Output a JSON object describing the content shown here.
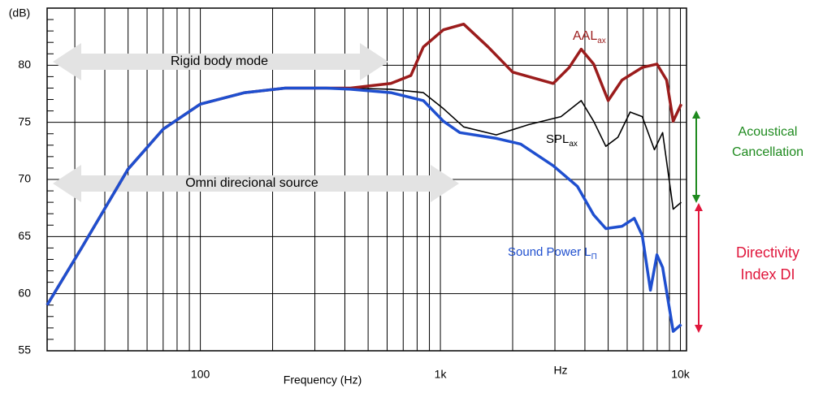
{
  "chart_data": {
    "type": "line",
    "y_label": "(dB)",
    "x_label": "Frequency (Hz)",
    "x_unit": "Hz",
    "log_x": true,
    "grid": true,
    "xlim": [
      23,
      10600
    ],
    "ylim": [
      55,
      85
    ],
    "xticks": [
      {
        "value": 100,
        "label": "100"
      },
      {
        "value": 1000,
        "label": "1k"
      },
      {
        "value": 10000,
        "label": "10k"
      }
    ],
    "xgrid": [
      30,
      40,
      50,
      60,
      70,
      80,
      90,
      200,
      300,
      400,
      500,
      600,
      700,
      800,
      900,
      2000,
      3000,
      4000,
      5000,
      6000,
      7000,
      8000,
      9000
    ],
    "yticks": [
      55,
      60,
      65,
      70,
      75,
      80
    ],
    "yminor": [
      56,
      57,
      58,
      59,
      61,
      62,
      63,
      64,
      66,
      67,
      68,
      69,
      71,
      72,
      73,
      74,
      76,
      77,
      78,
      79,
      81,
      82,
      83,
      84
    ],
    "series": [
      {
        "name": "AAL",
        "name_sub": "ax",
        "color": "#9b1c1c",
        "width": 3.5,
        "x": [
          23,
          32,
          50,
          70,
          100,
          153,
          226,
          334,
          422,
          622,
          753,
          849,
          1030,
          1250,
          1580,
          2000,
          2950,
          3440,
          3860,
          4350,
          5000,
          5710,
          6930,
          7980,
          8760,
          9330,
          10080
        ],
        "values": [
          59,
          64,
          70.9,
          74.4,
          76.6,
          77.6,
          78,
          78,
          78,
          78.4,
          79.1,
          81.6,
          83.1,
          83.6,
          81.6,
          79.4,
          78.4,
          79.8,
          81.4,
          80.1,
          76.9,
          78.7,
          79.8,
          80.1,
          78.7,
          75.1,
          76.6
        ]
      },
      {
        "name": "SPL",
        "name_sub": "ax",
        "color": "#000000",
        "width": 1.6,
        "x": [
          23,
          32,
          50,
          70,
          100,
          153,
          226,
          334,
          422,
          622,
          849,
          1030,
          1250,
          1710,
          2330,
          3180,
          3860,
          4350,
          4890,
          5490,
          6170,
          6930,
          7790,
          8430,
          9330,
          10080
        ],
        "values": [
          59,
          64,
          70.9,
          74.4,
          76.6,
          77.6,
          78,
          78,
          78,
          77.9,
          77.6,
          76.2,
          74.6,
          73.9,
          74.8,
          75.5,
          76.9,
          75.1,
          72.9,
          73.7,
          75.9,
          75.5,
          72.6,
          74.1,
          67.4,
          68
        ]
      },
      {
        "name": "Sound Power  L",
        "name_sub": "Π",
        "color": "#1f4fcf",
        "width": 3.5,
        "x": [
          23,
          32,
          50,
          70,
          100,
          153,
          226,
          334,
          422,
          622,
          849,
          1030,
          1205,
          1710,
          2160,
          2950,
          3720,
          4350,
          4890,
          5710,
          6420,
          6930,
          7500,
          7980,
          8430,
          9330,
          10080
        ],
        "values": [
          59,
          64,
          70.9,
          74.4,
          76.6,
          77.6,
          78,
          78,
          77.9,
          77.6,
          76.9,
          75.1,
          74.1,
          73.6,
          73.1,
          71.2,
          69.4,
          66.9,
          65.7,
          65.9,
          66.6,
          65.1,
          60.3,
          63.4,
          62.3,
          56.7,
          57.3
        ]
      }
    ],
    "annotations": [
      {
        "lines": [
          "Rigid body mode"
        ]
      },
      {
        "lines": [
          "Omni direcional source"
        ]
      },
      {
        "lines": [
          "Acoustical",
          "Cancellation"
        ],
        "color": "#1e8a1e"
      },
      {
        "lines": [
          "Directivity",
          "Index DI"
        ],
        "color": "#e0173c"
      }
    ]
  }
}
